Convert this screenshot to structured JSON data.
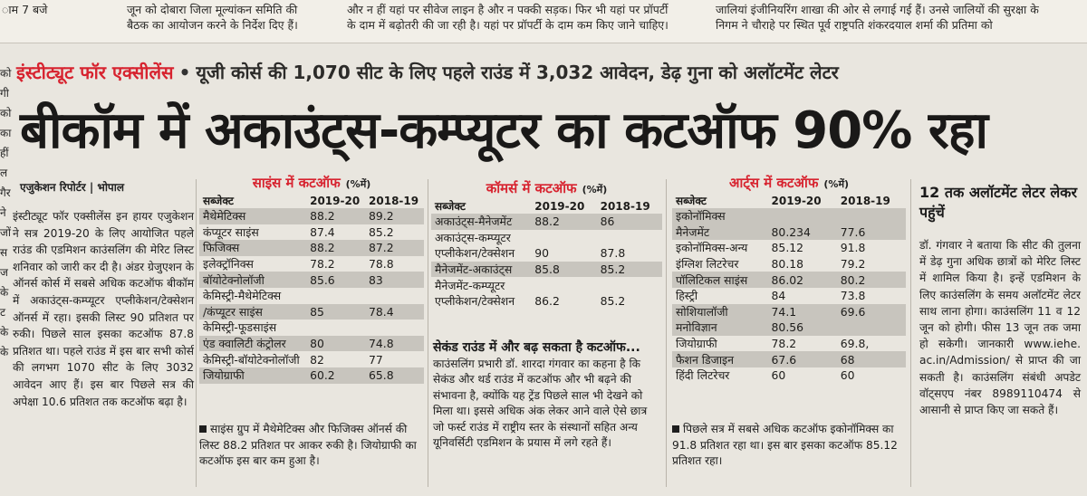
{
  "top_strip": {
    "col1": [
      "ाम 7 बजे"
    ],
    "col2": [
      "जून को दोबारा जिला मूल्यांकन समिति की",
      "बैठक का आयोजन करने के निर्देश दिए हैं।"
    ],
    "col3": [
      "और न हीं यहां पर सीवेज लाइन है और न पक्की सड़क। फिर भी यहां पर प्रॉपर्टी",
      "के दाम में बढ़ोतरी की जा रही है। यहां पर प्रॉपर्टी के दाम कम किए जाने चाहिए।"
    ],
    "col4": [
      "जालियां इंजीनियरिंग शाखा की ओर से लगाई गई हैं। उनसे जालियों की सुरक्षा के",
      "निगम ने चौराहे पर स्थित पूर्व राष्ट्रपति शंकरदयाल शर्मा की प्रतिमा को"
    ]
  },
  "left_margin": [
    "को",
    "गी",
    "को",
    "का",
    "हीं",
    "ल",
    "गैर",
    "ने",
    "जों",
    "स",
    "ज",
    "के",
    "ट",
    "के",
    "के"
  ],
  "kicker": {
    "red": "इंस्टीट्यूट फॉर एक्सीलेंस",
    "dot": "•",
    "rest": "यूजी कोर्स की 1,070 सीट के लिए पहले राउंड में 3,032 आवेदन, डेढ़ गुना को अलॉटमेंट लेटर"
  },
  "headline": "बीकॉम में अकाउंट्स-कम्प्यूटर का कटऑफ 90% रहा",
  "byline": "एजुकेशन रिपोर्टर | भोपाल",
  "body_text": "इंस्टीट्यूट फॉर एक्सीलेंस इन हायर एजुकेशन ने सत्र 2019-20 के लिए आयोजित पहले राउंड की एडमिशन काउंसलिंग की मेरिट लिस्ट शनिवार को जारी कर दी है। अंडर ग्रेजुएशन के ऑनर्स कोर्स में सबसे अधिक कटऑफ बीकॉम में अकाउंट्स-कम्प्यूटर एप्लीकेशन/टेक्सेशन ऑनर्स में रहा। इसकी लिस्ट 90 प्रतिशत पर रुकी। पिछले साल इसका कटऑफ 87.8 प्रतिशत था। पहले राउंड में इस बार सभी कोर्स की लगभग 1070 सीट के लिए 3032 आवेदन आए हैं। इस बार पिछले सत्र की अपेक्षा 10.6 प्रतिशत तक कटऑफ बढ़ा है।",
  "science": {
    "title": "साइंस में कटऑफ",
    "unit": "(%में)",
    "headers": [
      "सब्जेक्ट",
      "2019-20",
      "2018-19"
    ],
    "rows": [
      [
        "मैथेमेटिक्स",
        "88.2",
        "89.2"
      ],
      [
        "कंप्यूटर साइंस",
        "87.4",
        "85.2"
      ],
      [
        "फिजिक्स",
        "88.2",
        "87.2"
      ],
      [
        "इलेक्ट्रॉनिक्स",
        "78.2",
        "78.8"
      ],
      [
        "बॉयोटेक्नोलॉजी",
        "85.6",
        "83"
      ],
      [
        "केमिस्ट्री-मैथेमेटिक्स",
        "",
        ""
      ],
      [
        "/कंप्यूटर साइंस",
        "85",
        "78.4"
      ],
      [
        "केमिस्ट्री-फूडसाइंस",
        "",
        ""
      ],
      [
        "एंड क्वालिटी कंट्रोलर",
        "80",
        "74.8"
      ],
      [
        "केमिस्ट्री-बॉयोटेक्नोलॉजी",
        "82",
        "77"
      ],
      [
        "जियोग्राफी",
        "60.2",
        "65.8"
      ]
    ],
    "note": "साइंस ग्रुप में मैथेमेटिक्स और फिजिक्स ऑनर्स की लिस्ट 88.2 प्रतिशत पर आकर रुकी है। जियोग्राफी का कटऑफ इस बार कम हुआ है।"
  },
  "commerce": {
    "title": "कॉमर्स में कटऑफ",
    "unit": "(%में)",
    "headers": [
      "सब्जेक्ट",
      "2019-20",
      "2018-19"
    ],
    "rows": [
      [
        "अकाउंट्स-मैनेजमेंट",
        "88.2",
        "86"
      ],
      [
        "अकाउंट्स-कम्प्यूटर",
        "",
        ""
      ],
      [
        "एप्लीकेशन/टेक्सेशन",
        "90",
        "87.8"
      ],
      [
        "मैनेजमेंट-अकाउंट्स",
        "85.8",
        "85.2"
      ],
      [
        "मैनेजमेंट-कम्प्यूटर",
        "",
        ""
      ],
      [
        "एप्लीकेशन/टेक्सेशन",
        "86.2",
        "85.2"
      ]
    ],
    "sub_head": "सेकंड राउंड में और बढ़ सकता है कटऑफ...",
    "sub_text": "काउंसलिंग प्रभारी डॉ. शारदा गंगवार का कहना है कि सेकंड और थर्ड राउंड में कटऑफ और भी बढ़ने की संभावना है, क्योंकि यह ट्रेंड पिछले साल भी देखने को मिला था। इससे अधिक अंक लेकर आने वाले ऐसे छात्र जो फर्स्ट राउंड में राष्ट्रीय स्तर के संस्थानों सहित अन्य यूनिवर्सिटी एडमिशन के प्रयास में लगे रहते हैं।"
  },
  "arts": {
    "title": "आर्ट्स में कटऑफ",
    "unit": "(%में)",
    "headers": [
      "सब्जेक्ट",
      "2019-20",
      "2018-19"
    ],
    "rows": [
      [
        "इकोनॉमिक्स",
        "",
        ""
      ],
      [
        "मैनेजमेंट",
        "80.234",
        "77.6"
      ],
      [
        "इकोनॉमिक्स-अन्य",
        "85.12",
        "91.8"
      ],
      [
        "इंग्लिश लिटरेचर",
        "80.18",
        "79.2"
      ],
      [
        "पॉलिटिकल साइंस",
        "86.02",
        "80.2"
      ],
      [
        "हिस्ट्री",
        "84",
        "73.8"
      ],
      [
        "सोशियालॉजी",
        "74.1",
        "69.6"
      ],
      [
        "मनोविज्ञान",
        "80.56",
        ""
      ],
      [
        "जियोग्राफी",
        "78.2",
        "69.8,"
      ],
      [
        "फैशन डिजाइन",
        "67.6",
        "68"
      ],
      [
        "हिंदी लिटरेचर",
        "60",
        "60"
      ]
    ],
    "note": "पिछले सत्र में सबसे अधिक कटऑफ इकोनॉमिक्स का 91.8 प्रतिशत रहा था। इस बार इसका कटऑफ 85.12 प्रतिशत रहा।"
  },
  "side": {
    "head": "12 तक अलॉटमेंट लेटर लेकर पहुंचें",
    "text": "डॉ. गंगवार ने बताया कि सीट की तुलना में डेढ़ गुना अधिक छात्रों को मेरिट लिस्ट में शामिल किया है। इन्हें एडमिशन के लिए काउंसलिंग के समय अलॉटमेंट लेटर साथ लाना होगा। काउंसलिंग 11 व 12 जून को होगी। फीस 13 जून तक जमा हो सकेगी। जानकारी www.iehe. ac.in/Admission/ से प्राप्त की जा सकती है। काउंसलिंग संबंधी अपडेट वॉट्सएप नंबर 8989110474 से आसानी से प्राप्त किए जा सकते हैं।"
  }
}
